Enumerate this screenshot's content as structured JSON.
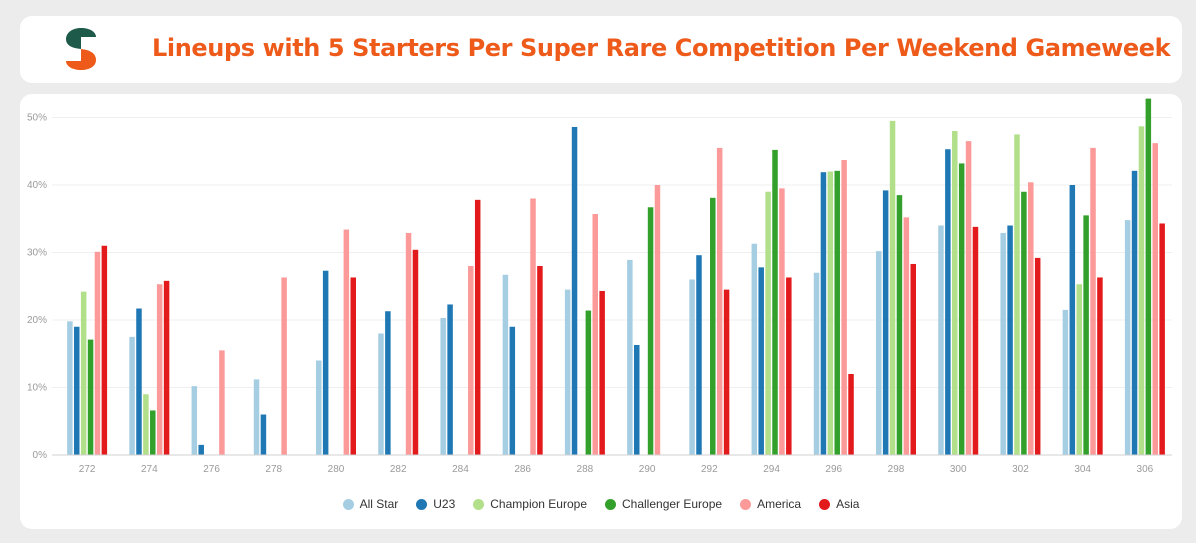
{
  "header": {
    "title": "Lineups with 5 Starters Per Super Rare Competition Per Weekend Gameweek",
    "logo_icon": "sorare-data-logo",
    "logo_colors": [
      "#1e5a4a",
      "#ee5a1a"
    ]
  },
  "chart_data": {
    "type": "bar",
    "title": "Lineups with 5 Starters Per Super Rare Competition Per Weekend Gameweek",
    "xlabel": "",
    "ylabel": "",
    "ylim": [
      0,
      52
    ],
    "yticks": [
      "0%",
      "10%",
      "20%",
      "30%",
      "40%",
      "50%"
    ],
    "ytick_values": [
      0,
      10,
      20,
      30,
      40,
      50
    ],
    "grid": true,
    "legend_position": "bottom",
    "categories": [
      "272",
      "274",
      "276",
      "278",
      "280",
      "282",
      "284",
      "286",
      "288",
      "290",
      "292",
      "294",
      "296",
      "298",
      "300",
      "302",
      "304",
      "306"
    ],
    "series": [
      {
        "name": "All Star",
        "color": "#a6cee3",
        "values": [
          19.8,
          17.5,
          10.2,
          11.2,
          14.0,
          18.0,
          20.3,
          26.7,
          24.5,
          28.9,
          26.0,
          31.3,
          27.0,
          30.2,
          34.0,
          32.9,
          21.5,
          34.8
        ]
      },
      {
        "name": "U23",
        "color": "#1f78b4",
        "values": [
          19.0,
          21.7,
          1.5,
          6.0,
          27.3,
          21.3,
          22.3,
          19.0,
          48.6,
          16.3,
          29.6,
          27.8,
          41.9,
          39.2,
          45.3,
          34.0,
          40.0,
          42.1
        ]
      },
      {
        "name": "Champion Europe",
        "color": "#b2df8a",
        "values": [
          24.2,
          9.0,
          0,
          0,
          0,
          0,
          0,
          0,
          0,
          0,
          0,
          39.0,
          42.0,
          49.5,
          48.0,
          47.5,
          25.3,
          48.7
        ]
      },
      {
        "name": "Challenger Europe",
        "color": "#33a02c",
        "values": [
          17.1,
          6.6,
          0,
          0,
          0,
          0,
          0,
          0,
          21.4,
          36.7,
          38.1,
          45.2,
          42.1,
          38.5,
          43.2,
          39.0,
          35.5,
          52.8
        ]
      },
      {
        "name": "America",
        "color": "#fb9a99",
        "values": [
          30.1,
          25.3,
          15.5,
          26.3,
          33.4,
          32.9,
          28.0,
          38.0,
          35.7,
          40.0,
          45.5,
          39.5,
          43.7,
          35.2,
          46.5,
          40.4,
          45.5,
          46.2
        ]
      },
      {
        "name": "Asia",
        "color": "#e31a1c",
        "values": [
          31.0,
          25.8,
          0,
          0,
          26.3,
          30.4,
          37.8,
          28.0,
          24.3,
          0,
          24.5,
          26.3,
          12.0,
          28.3,
          33.8,
          29.2,
          26.3,
          34.3
        ]
      }
    ]
  }
}
